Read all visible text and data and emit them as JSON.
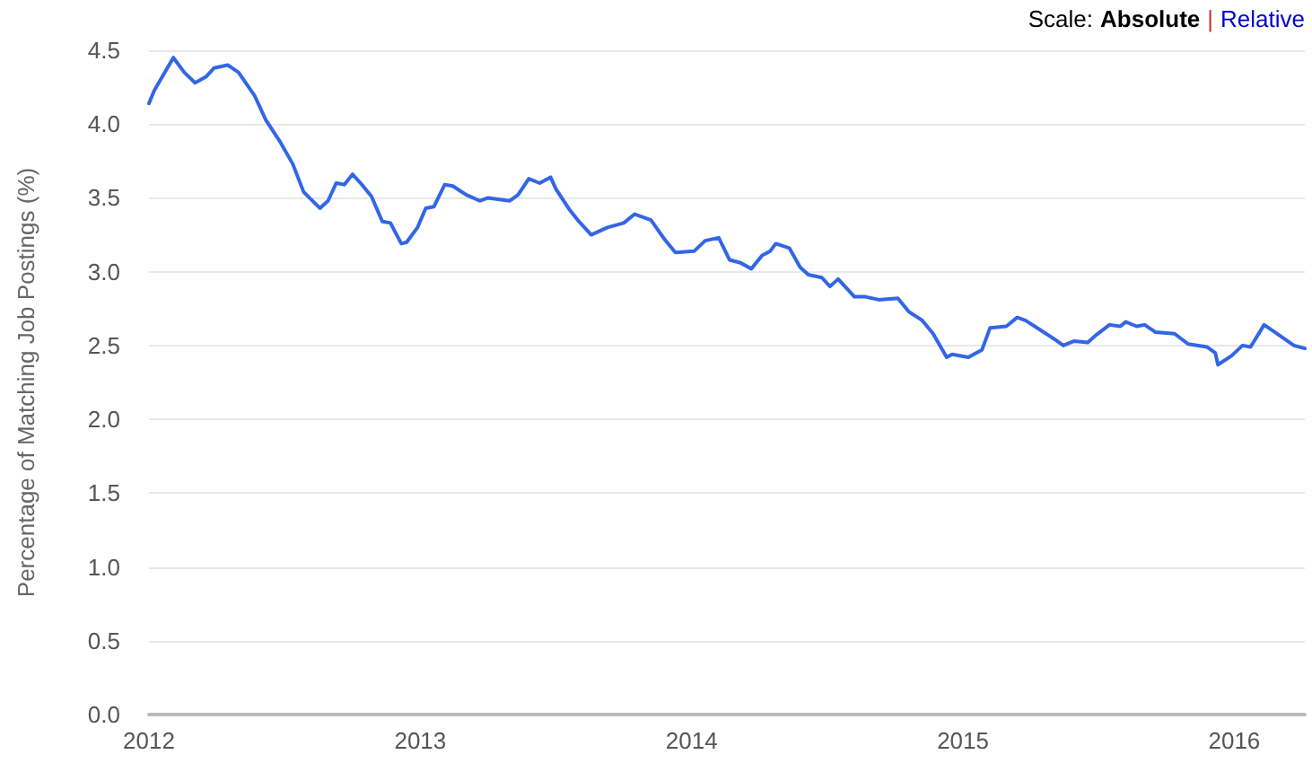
{
  "chart_data": {
    "type": "line",
    "ylabel": "Percentage of Matching Job Postings (%)",
    "annotations": [
      "Scale:",
      "Absolute",
      "|",
      "Relative"
    ],
    "x": [
      2012.0,
      2012.02,
      2012.09,
      2012.13,
      2012.17,
      2012.21,
      2012.24,
      2012.29,
      2012.33,
      2012.39,
      2012.43,
      2012.48,
      2012.53,
      2012.57,
      2012.63,
      2012.66,
      2012.69,
      2012.72,
      2012.75,
      2012.78,
      2012.82,
      2012.86,
      2012.89,
      2012.93,
      2012.95,
      2012.99,
      2013.02,
      2013.05,
      2013.09,
      2013.12,
      2013.17,
      2013.22,
      2013.25,
      2013.33,
      2013.36,
      2013.4,
      2013.44,
      2013.48,
      2013.5,
      2013.55,
      2013.58,
      2013.63,
      2013.69,
      2013.75,
      2013.79,
      2013.85,
      2013.9,
      2013.94,
      2014.01,
      2014.05,
      2014.1,
      2014.14,
      2014.18,
      2014.22,
      2014.26,
      2014.29,
      2014.31,
      2014.36,
      2014.4,
      2014.43,
      2014.48,
      2014.51,
      2014.54,
      2014.6,
      2014.64,
      2014.69,
      2014.76,
      2014.8,
      2014.85,
      2014.89,
      2014.94,
      2014.96,
      2015.02,
      2015.07,
      2015.1,
      2015.16,
      2015.2,
      2015.23,
      2015.29,
      2015.34,
      2015.37,
      2015.41,
      2015.46,
      2015.49,
      2015.54,
      2015.58,
      2015.6,
      2015.64,
      2015.67,
      2015.71,
      2015.78,
      2015.83,
      2015.9,
      2015.93,
      2015.94,
      2015.99,
      2016.03,
      2016.06,
      2016.11,
      2016.15,
      2016.22,
      2016.26
    ],
    "series": [
      {
        "color": "#3366e6",
        "values": [
          4.14,
          4.23,
          4.45,
          4.35,
          4.28,
          4.32,
          4.38,
          4.4,
          4.35,
          4.19,
          4.03,
          3.89,
          3.73,
          3.54,
          3.43,
          3.48,
          3.6,
          3.59,
          3.66,
          3.6,
          3.51,
          3.34,
          3.33,
          3.19,
          3.2,
          3.3,
          3.43,
          3.44,
          3.59,
          3.58,
          3.52,
          3.48,
          3.5,
          3.48,
          3.52,
          3.63,
          3.6,
          3.64,
          3.56,
          3.42,
          3.35,
          3.25,
          3.3,
          3.33,
          3.39,
          3.35,
          3.22,
          3.13,
          3.14,
          3.21,
          3.23,
          3.08,
          3.06,
          3.02,
          3.11,
          3.14,
          3.19,
          3.16,
          3.03,
          2.98,
          2.96,
          2.9,
          2.95,
          2.83,
          2.83,
          2.81,
          2.82,
          2.73,
          2.67,
          2.58,
          2.42,
          2.44,
          2.42,
          2.47,
          2.62,
          2.63,
          2.69,
          2.67,
          2.6,
          2.54,
          2.5,
          2.53,
          2.52,
          2.57,
          2.64,
          2.63,
          2.66,
          2.63,
          2.64,
          2.59,
          2.58,
          2.51,
          2.49,
          2.45,
          2.37,
          2.43,
          2.5,
          2.49,
          2.64,
          2.59,
          2.5,
          2.48
        ]
      }
    ],
    "xlim": [
      2012,
      2016.26
    ],
    "xticks": [
      2012,
      2013,
      2014,
      2015,
      2016
    ],
    "ylim": [
      0,
      4.5
    ],
    "yticks": [
      {
        "value": 0,
        "label": "0.0"
      },
      0.5,
      {
        "value": 1,
        "label": "1.0"
      },
      1.5,
      {
        "value": 2,
        "label": "2.0"
      },
      2.5,
      {
        "value": 3,
        "label": "3.0"
      },
      3.5,
      {
        "value": 4,
        "label": "4.0"
      },
      4.5
    ],
    "grid": "y",
    "marker": "none",
    "line_style": "solid"
  }
}
